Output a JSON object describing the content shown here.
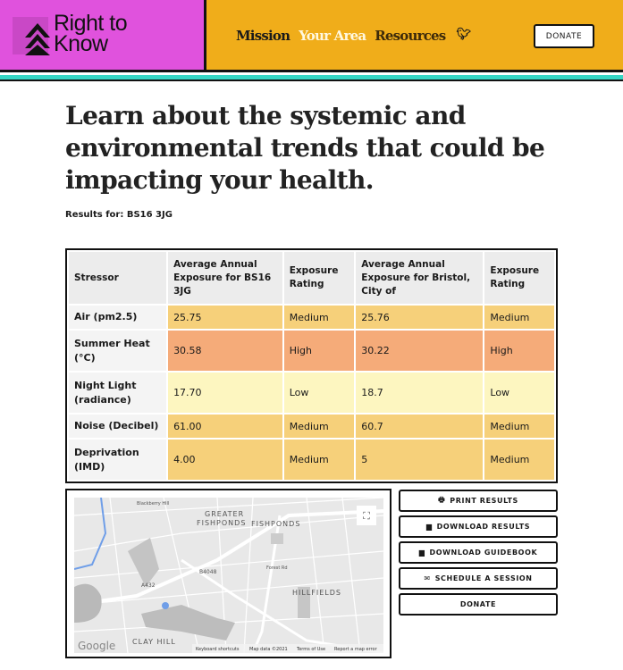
{
  "header": {
    "logo_text_1": "Right to",
    "logo_text_2": "Know",
    "nav": [
      "Mission",
      "Your Area",
      "Resources"
    ],
    "twitter_icon": "twitter-icon",
    "donate": "DONATE"
  },
  "colors": {
    "logo_bg": "#e052dd",
    "nav_bg": "#f0ad1a",
    "teal": "#35d6c4",
    "medium": "#f6d07a",
    "high": "#f5ab79",
    "low": "#fdf6c0"
  },
  "title": "Learn about the systemic and environmental trends that could be impacting your health.",
  "results_for": "Results for: BS16 3JG",
  "table": {
    "headers": [
      "Stressor",
      "Average Annual Exposure for BS16 3JG",
      "Exposure Rating",
      "Average Annual Exposure for Bristol, City of",
      "Exposure Rating"
    ],
    "rows": [
      [
        "Air (pm2.5)",
        "25.75",
        "Medium",
        "25.76",
        "Medium"
      ],
      [
        "Summer Heat (°C)",
        "30.58",
        "High",
        "30.22",
        "High"
      ],
      [
        "Night Light (radiance)",
        "17.70",
        "Low",
        "18.7",
        "Low"
      ],
      [
        "Noise (Decibel)",
        "61.00",
        "Medium",
        "60.7",
        "Medium"
      ],
      [
        "Deprivation (IMD)",
        "4.00",
        "Medium",
        "5",
        "Medium"
      ]
    ]
  },
  "map": {
    "labels": [
      "GREATER",
      "FISHPONDS",
      "FISHPONDS",
      "HILLFIELDS",
      "CLAY HILL",
      "A432",
      "B4048",
      "Forest Rd",
      "Blackberry Hill"
    ],
    "google": "Google",
    "footer": [
      "Keyboard shortcuts",
      "Map data ©2021",
      "Terms of Use",
      "Report a map error"
    ]
  },
  "buttons": [
    {
      "icon": "print-icon",
      "glyph": "🖶",
      "label": "PRINT RESULTS"
    },
    {
      "icon": "file-icon",
      "glyph": "▆",
      "label": "DOWNLOAD RESULTS"
    },
    {
      "icon": "file-icon",
      "glyph": "▆",
      "label": "DOWNLOAD GUIDEBOOK"
    },
    {
      "icon": "envelope-icon",
      "glyph": "✉",
      "label": "SCHEDULE A SESSION"
    },
    {
      "icon": "",
      "glyph": "",
      "label": "DONATE"
    }
  ]
}
